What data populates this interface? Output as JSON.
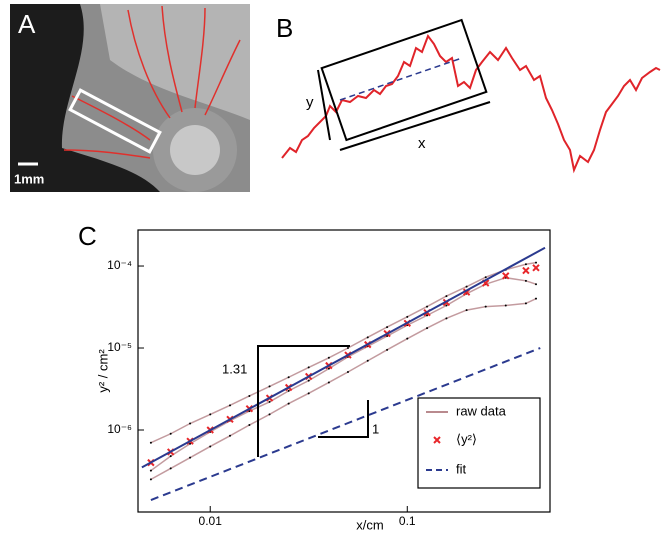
{
  "panels": {
    "a": {
      "label": "A",
      "scale_bar": "1mm"
    },
    "b": {
      "label": "B",
      "y_label": "y",
      "x_label": "x"
    }
  },
  "chart_data": {
    "type": "scatter",
    "title": "C",
    "xlabel": "x/cm",
    "ylabel": "y² / cm²",
    "log_x": true,
    "log_y": true,
    "xlim": [
      0.0043,
      0.53
    ],
    "ylim": [
      1e-07,
      0.000275
    ],
    "xticks": [
      0.01,
      0.1
    ],
    "yticks": [
      {
        "value": 1e-06,
        "label": "10⁻⁶"
      },
      {
        "value": 1e-05,
        "label": "10⁻⁵"
      },
      {
        "value": 0.0001,
        "label": "10⁻⁴"
      }
    ],
    "legend_position": "lower right",
    "x": [
      0.005,
      0.0063,
      0.0079,
      0.01,
      0.0126,
      0.0158,
      0.02,
      0.025,
      0.0316,
      0.04,
      0.05,
      0.063,
      0.079,
      0.1,
      0.126,
      0.158,
      0.2,
      0.25,
      0.316,
      0.4,
      0.45
    ],
    "raw_traces": {
      "name": "raw data",
      "color": "#b98a8e",
      "values": [
        [
          2.5e-07,
          3.4e-07,
          4.6e-07,
          6.3e-07,
          8.5e-07,
          1.15e-06,
          1.55e-06,
          2.1e-06,
          2.8e-06,
          3.8e-06,
          5.1e-06,
          7e-06,
          9.5e-06,
          1.3e-05,
          1.75e-05,
          2.3e-05,
          2.9e-05,
          3.2e-05,
          3.3e-05,
          3.5e-05,
          4e-05
        ],
        [
          7e-07,
          9e-07,
          1.2e-06,
          1.55e-06,
          2e-06,
          2.6e-06,
          3.4e-06,
          4.4e-06,
          5.8e-06,
          7.6e-06,
          1e-05,
          1.35e-05,
          1.8e-05,
          2.4e-05,
          3.2e-05,
          4.3e-05,
          5.6e-05,
          7.3e-05,
          9e-05,
          0.000105,
          0.00011
        ],
        [
          3.2e-07,
          4.8e-07,
          6.8e-07,
          9.5e-07,
          1.3e-06,
          1.7e-06,
          2.2e-06,
          3e-06,
          4e-06,
          5.6e-06,
          7.8e-06,
          1.05e-05,
          1.4e-05,
          1.9e-05,
          2.5e-05,
          3.3e-05,
          4.6e-05,
          6e-05,
          7.2e-05,
          6.6e-05,
          6e-05
        ]
      ]
    },
    "series": [
      {
        "name": "⟨y²⟩",
        "color": "#e8262a",
        "marker": "x",
        "values": [
          4e-07,
          5.4e-07,
          7.3e-07,
          1e-06,
          1.35e-06,
          1.82e-06,
          2.45e-06,
          3.3e-06,
          4.5e-06,
          6.1e-06,
          8.2e-06,
          1.1e-05,
          1.5e-05,
          2e-05,
          2.7e-05,
          3.6e-05,
          4.8e-05,
          6.2e-05,
          7.6e-05,
          8.8e-05,
          9.5e-05
        ]
      },
      {
        "name": "fit",
        "color": "#2b3a8f",
        "marker": "line",
        "x": [
          0.0045,
          0.5
        ],
        "values": [
          3.5e-07,
          0.000167
        ]
      }
    ],
    "reference_line": {
      "color": "#2b3a8f",
      "dashed": true,
      "x": [
        0.005,
        0.473
      ],
      "values": [
        1.4e-07,
        1e-05
      ]
    },
    "annotations": [
      "1.31",
      "1"
    ]
  }
}
